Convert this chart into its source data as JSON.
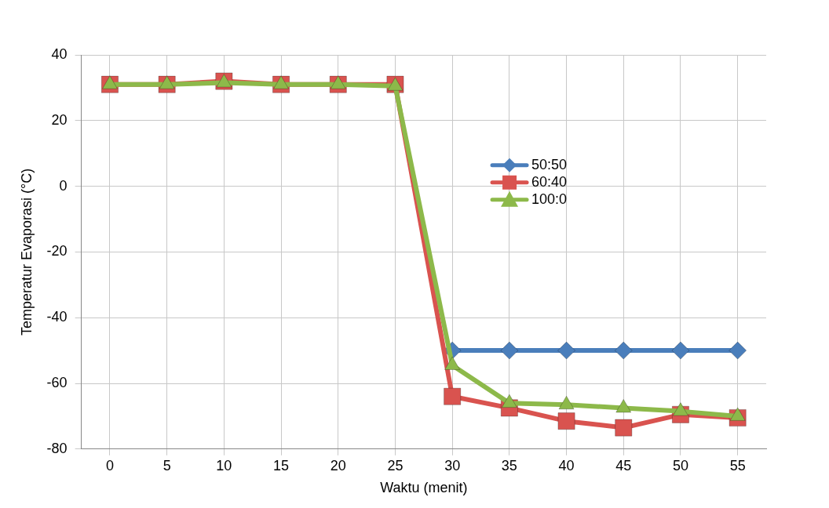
{
  "chart_data": {
    "type": "line",
    "xlabel": "Waktu (menit)",
    "ylabel": "Temperatur Evaporasi (°C)",
    "categories": [
      "0",
      "5",
      "10",
      "15",
      "20",
      "25",
      "30",
      "35",
      "40",
      "45",
      "50",
      "55"
    ],
    "series": [
      {
        "name": "50:50",
        "color": "#4a7ebb",
        "marker": "diamond",
        "values": [
          null,
          null,
          null,
          null,
          null,
          null,
          -50,
          -50,
          -50,
          -50,
          -50,
          -50
        ]
      },
      {
        "name": "60:40",
        "color": "#d9534f",
        "marker": "square",
        "values": [
          31,
          31,
          32,
          31,
          31,
          31,
          -64,
          -67.5,
          -71.5,
          -73.5,
          -69.5,
          -70.5
        ]
      },
      {
        "name": "100:0",
        "color": "#8db94a",
        "marker": "triangle",
        "values": [
          31,
          31,
          31.5,
          31,
          31,
          30.5,
          -54.5,
          -66,
          -66.5,
          -67.5,
          -68.5,
          -70
        ]
      }
    ],
    "ylim": [
      -80,
      40
    ],
    "yticks": [
      -80,
      -60,
      -40,
      -20,
      0,
      20,
      40
    ],
    "grid": true,
    "legend": "right"
  }
}
